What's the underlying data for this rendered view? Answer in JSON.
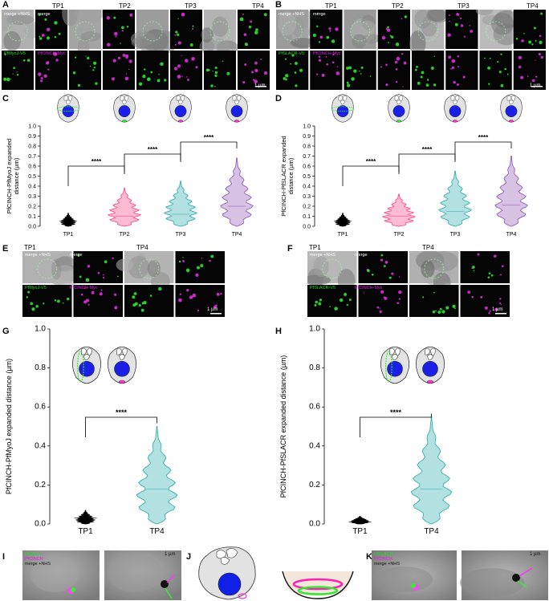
{
  "panels": {
    "A": {
      "letter": "A",
      "timepoints": [
        "TP1",
        "TP2",
        "TP3",
        "TP4"
      ],
      "labels": {
        "merge_nhs": "merge +NHS",
        "merge": "merge",
        "green": "PfMyoJ-V5",
        "magenta": "PfCINCH-Myc"
      },
      "scale": "1 µm"
    },
    "B": {
      "letter": "B",
      "timepoints": [
        "TP1",
        "TP2",
        "TP3",
        "TP4"
      ],
      "labels": {
        "merge_nhs": "merge +NHS",
        "merge": "merge",
        "green": "PfSLACR-V5",
        "magenta": "PfCINCH-Myc"
      },
      "scale": "1 µm"
    },
    "E": {
      "letter": "E",
      "timepoints": [
        "TP1",
        "TP4"
      ],
      "labels": {
        "merge_nhs": "merge +NHS",
        "merge": "merge",
        "green": "PfMyoJ-V5",
        "magenta": "PfCINCH-Myc"
      },
      "scale": "1 µm"
    },
    "F": {
      "letter": "F",
      "timepoints": [
        "TP1",
        "TP4"
      ],
      "labels": {
        "merge_nhs": "merge +NHS",
        "merge": "merge",
        "green": "PfSLACR-V5",
        "magenta": "PfCINCH-Myc"
      },
      "scale": "1 µm"
    },
    "I": {
      "letter": "I",
      "labels": {
        "green": "PfMyoJ",
        "magenta": "PfCINCH",
        "merge_nhs": "merge +NHS"
      },
      "scale": "1 µm"
    },
    "J": {
      "letter": "J"
    },
    "K": {
      "letter": "K",
      "labels": {
        "green": "PfSLACR",
        "magenta": "PfCINCH",
        "merge_nhs": "merge +NHS"
      },
      "scale": "1 µm"
    }
  },
  "chart_data": [
    {
      "panel": "C",
      "type": "violin",
      "ylabel": "PfCINCH-PfMyoJ expanded distance (µm)",
      "ylabel_lines": [
        "PfCINCH-PfMyoJ expanded",
        "distance (µm)"
      ],
      "ylim": [
        0,
        1.0
      ],
      "yticks": [
        "0.0",
        "0.1",
        "0.2",
        "0.3",
        "0.4",
        "0.5",
        "0.6",
        "0.7",
        "0.8",
        "0.9",
        "1.0"
      ],
      "categories": [
        "TP1",
        "TP2",
        "TP3",
        "TP4"
      ],
      "colors": [
        "#000000",
        "#ff3d7f",
        "#26a8a8",
        "#8c4fb3"
      ],
      "violins": [
        {
          "min": 0.0,
          "max": 0.13,
          "median": 0.05
        },
        {
          "min": 0.0,
          "max": 0.38,
          "median": 0.1
        },
        {
          "min": 0.0,
          "max": 0.45,
          "median": 0.12
        },
        {
          "min": 0.0,
          "max": 0.68,
          "median": 0.2
        }
      ],
      "significance": [
        {
          "from": 0,
          "to": 1,
          "label": "****"
        },
        {
          "from": 1,
          "to": 2,
          "label": "****"
        },
        {
          "from": 2,
          "to": 3,
          "label": "****"
        }
      ]
    },
    {
      "panel": "D",
      "type": "violin",
      "ylabel": "PfCINCH-PfSLACR expanded distance (µm)",
      "ylabel_lines": [
        "PfCINCH-PfSLACR expanded",
        "distance (µm)"
      ],
      "ylim": [
        0,
        1.0
      ],
      "yticks": [
        "0.0",
        "0.1",
        "0.2",
        "0.3",
        "0.4",
        "0.5",
        "0.6",
        "0.7",
        "0.8",
        "0.9",
        "1.0"
      ],
      "categories": [
        "TP1",
        "TP2",
        "TP3",
        "TP4"
      ],
      "colors": [
        "#000000",
        "#ff3d7f",
        "#26a8a8",
        "#8c4fb3"
      ],
      "violins": [
        {
          "min": 0.0,
          "max": 0.13,
          "median": 0.05
        },
        {
          "min": 0.0,
          "max": 0.32,
          "median": 0.1
        },
        {
          "min": 0.0,
          "max": 0.55,
          "median": 0.15
        },
        {
          "min": 0.0,
          "max": 0.7,
          "median": 0.21
        }
      ],
      "significance": [
        {
          "from": 0,
          "to": 1,
          "label": "****"
        },
        {
          "from": 1,
          "to": 2,
          "label": "****"
        },
        {
          "from": 2,
          "to": 3,
          "label": "****"
        }
      ]
    },
    {
      "panel": "G",
      "type": "violin",
      "ylabel": "PfCINCH-PfMyoJ expanded distance (µm)",
      "ylim": [
        0,
        1.0
      ],
      "yticks": [
        "0.0",
        "0.2",
        "0.4",
        "0.6",
        "0.8",
        "1.0"
      ],
      "categories": [
        "TP1",
        "TP4"
      ],
      "colors": [
        "#000000",
        "#26a8a8"
      ],
      "violins": [
        {
          "min": 0.0,
          "max": 0.07,
          "median": 0.03
        },
        {
          "min": 0.0,
          "max": 0.5,
          "median": 0.18
        }
      ],
      "significance": [
        {
          "from": 0,
          "to": 1,
          "label": "****"
        }
      ]
    },
    {
      "panel": "H",
      "type": "violin",
      "ylabel": "PfCINCH-PfSLACR expanded distance (µm)",
      "ylim": [
        0,
        1.0
      ],
      "yticks": [
        "0.0",
        "0.2",
        "0.4",
        "0.6",
        "0.8",
        "1.0"
      ],
      "categories": [
        "TP1",
        "TP4"
      ],
      "colors": [
        "#000000",
        "#26a8a8"
      ],
      "violins": [
        {
          "min": 0.0,
          "max": 0.04,
          "median": 0.01
        },
        {
          "min": 0.0,
          "max": 0.55,
          "median": 0.18
        }
      ],
      "significance": [
        {
          "from": 0,
          "to": 1,
          "label": "****"
        }
      ]
    }
  ]
}
